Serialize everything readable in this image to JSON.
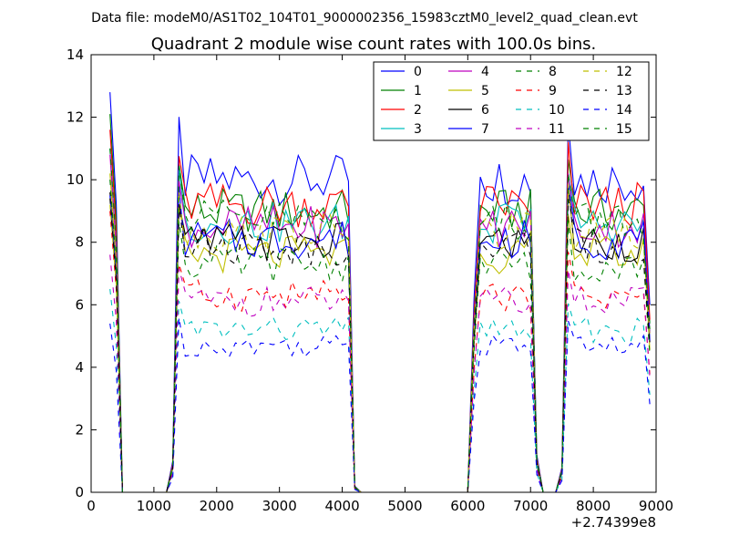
{
  "suptitle": "Data file: modeM0/AS1T02_104T01_9000002356_15983cztM0_level2_quad_clean.evt",
  "chart_data": {
    "type": "line",
    "title": "Quadrant 2 module wise count rates with 100.0s bins.",
    "xlabel": "",
    "ylabel": "",
    "x_offset_label": "+2.74399e8",
    "xlim": [
      0,
      9000
    ],
    "ylim": [
      0,
      14
    ],
    "xticks": [
      0,
      1000,
      2000,
      3000,
      4000,
      5000,
      6000,
      7000,
      8000,
      9000
    ],
    "yticks": [
      0,
      2,
      4,
      6,
      8,
      10,
      12,
      14
    ],
    "legend_position": "top-right",
    "x": [
      300,
      400,
      500,
      600,
      700,
      800,
      900,
      1000,
      1100,
      1200,
      1300,
      1400,
      1500,
      1600,
      1700,
      1800,
      1900,
      2000,
      2100,
      2200,
      2300,
      2400,
      2500,
      2600,
      2700,
      2800,
      2900,
      3000,
      3100,
      3200,
      3300,
      3400,
      3500,
      3600,
      3700,
      3800,
      3900,
      4000,
      4100,
      4200,
      4300,
      4400,
      4500,
      4600,
      4700,
      4800,
      4900,
      5000,
      5100,
      5200,
      5300,
      5400,
      5500,
      5600,
      5700,
      5800,
      5900,
      6000,
      6100,
      6200,
      6300,
      6400,
      6500,
      6600,
      6700,
      6800,
      6900,
      7000,
      7100,
      7200,
      7300,
      7400,
      7500,
      7600,
      7700,
      7800,
      7900,
      8000,
      8100,
      8200,
      8300,
      8400,
      8500,
      8600,
      8700,
      8800,
      8900
    ],
    "series": [
      {
        "name": "0",
        "color": "#0000ff",
        "dash": "solid",
        "level": 10.0,
        "start": 12.8
      },
      {
        "name": "1",
        "color": "#008000",
        "dash": "solid",
        "level": 9.0,
        "start": 12.1
      },
      {
        "name": "2",
        "color": "#ff0000",
        "dash": "solid",
        "level": 9.2,
        "start": 11.6
      },
      {
        "name": "3",
        "color": "#00bfbf",
        "dash": "solid",
        "level": 8.6,
        "start": 11.0
      },
      {
        "name": "4",
        "color": "#bf00bf",
        "dash": "solid",
        "level": 8.5,
        "start": 10.8
      },
      {
        "name": "5",
        "color": "#bfbf00",
        "dash": "solid",
        "level": 7.6,
        "start": 10.2
      },
      {
        "name": "6",
        "color": "#000000",
        "dash": "solid",
        "level": 8.0,
        "start": 9.6
      },
      {
        "name": "7",
        "color": "#0000ff",
        "dash": "solid",
        "level": 8.1,
        "start": 9.5
      },
      {
        "name": "8",
        "color": "#008000",
        "dash": "dashed",
        "level": 7.3,
        "start": 10.0
      },
      {
        "name": "9",
        "color": "#ff0000",
        "dash": "dashed",
        "level": 6.3,
        "start": 9.0
      },
      {
        "name": "10",
        "color": "#00bfbf",
        "dash": "dashed",
        "level": 5.2,
        "start": 6.5
      },
      {
        "name": "11",
        "color": "#bf00bf",
        "dash": "dashed",
        "level": 6.1,
        "start": 7.6
      },
      {
        "name": "12",
        "color": "#bfbf00",
        "dash": "dashed",
        "level": 8.3,
        "start": 9.2
      },
      {
        "name": "13",
        "color": "#000000",
        "dash": "dashed",
        "level": 7.9,
        "start": 9.4
      },
      {
        "name": "14",
        "color": "#0000ff",
        "dash": "dashed",
        "level": 4.7,
        "start": 5.4
      },
      {
        "name": "15",
        "color": "#008000",
        "dash": "dashed",
        "level": 8.7,
        "start": 11.0
      }
    ],
    "active_intervals": [
      [
        1400,
        4100
      ],
      [
        6200,
        7000
      ],
      [
        7600,
        8800
      ]
    ],
    "zero_intervals": [
      [
        500,
        1200
      ],
      [
        4300,
        6000
      ],
      [
        7200,
        7300
      ]
    ],
    "segment_peaks": [
      1.18,
      1.0,
      1.2
    ]
  }
}
